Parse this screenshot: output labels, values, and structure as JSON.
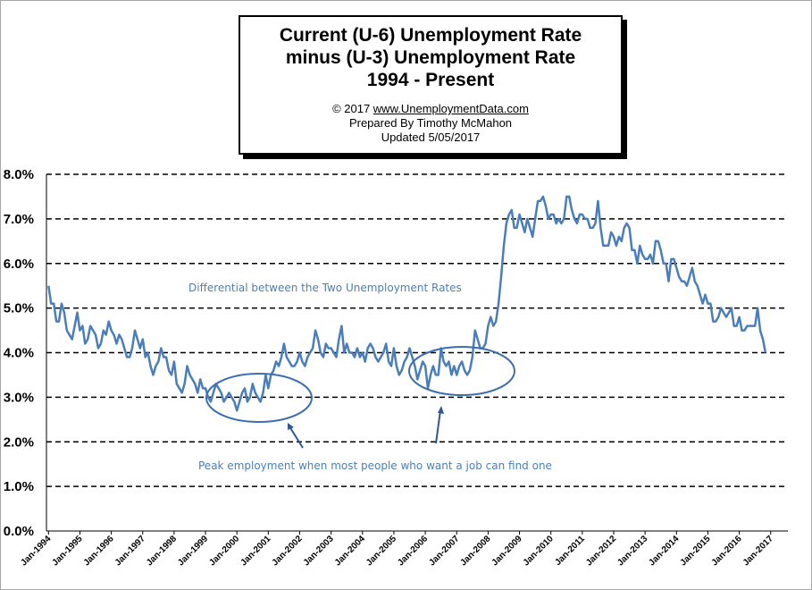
{
  "title": {
    "line1": "Current (U-6) Unemployment  Rate",
    "line2": "minus (U-3) Unemployment Rate",
    "line3": "1994 - Present"
  },
  "credits": {
    "copyright": "© 2017  ",
    "url": "www.UnemploymentData.com",
    "prepared": "Prepared  By Timothy McMahon",
    "updated": "Updated  5/05/2017"
  },
  "annotations": {
    "differential": "Differential between the Two Unemployment Rates",
    "peak": "Peak employment when most people who want a job can find one"
  },
  "colors": {
    "series": "#4a7ebb",
    "annotation": "#4c7fb8",
    "grid": "#000000"
  },
  "chart_data": {
    "type": "line",
    "ylim": [
      0,
      8
    ],
    "yticks": [
      "0.0%",
      "1.0%",
      "2.0%",
      "3.0%",
      "4.0%",
      "5.0%",
      "6.0%",
      "7.0%",
      "8.0%"
    ],
    "xticks": [
      "Jan-1994",
      "Jan-1995",
      "Jan-1996",
      "Jan-1997",
      "Jan-1998",
      "Jan-1999",
      "Jan-2000",
      "Jan-2001",
      "Jan-2002",
      "Jan-2003",
      "Jan-2004",
      "Jan-2005",
      "Jan-2006",
      "Jan-2007",
      "Jan-2008",
      "Jan-2009",
      "Jan-2010",
      "Jan-2011",
      "Jan-2012",
      "Jan-2013",
      "Jan-2014",
      "Jan-2015",
      "Jan-2016",
      "Jan-2017"
    ],
    "grid": "horizontal dashed",
    "start": "Jan-1994",
    "end": "Apr-2017",
    "values": [
      5.5,
      5.1,
      5.1,
      4.7,
      4.7,
      5.1,
      4.9,
      4.5,
      4.4,
      4.3,
      4.6,
      4.9,
      4.5,
      4.6,
      4.2,
      4.3,
      4.6,
      4.5,
      4.4,
      4.1,
      4.2,
      4.5,
      4.4,
      4.7,
      4.5,
      4.4,
      4.2,
      4.4,
      4.3,
      4.1,
      3.9,
      3.9,
      4.1,
      4.5,
      4.3,
      4.1,
      4.3,
      3.9,
      4.0,
      3.7,
      3.5,
      3.7,
      3.8,
      4.1,
      3.9,
      3.9,
      3.6,
      3.5,
      3.8,
      3.3,
      3.2,
      3.1,
      3.3,
      3.7,
      3.5,
      3.4,
      3.3,
      3.1,
      3.4,
      3.2,
      3.2,
      3.0,
      2.9,
      3.1,
      3.3,
      3.2,
      3.1,
      2.9,
      3.0,
      3.1,
      3.0,
      2.9,
      2.7,
      2.9,
      3.1,
      3.2,
      2.9,
      3.0,
      3.3,
      3.1,
      3.0,
      2.9,
      3.1,
      3.5,
      3.2,
      3.5,
      3.6,
      3.8,
      3.7,
      3.9,
      4.2,
      3.9,
      3.8,
      3.7,
      3.7,
      3.8,
      4.0,
      3.8,
      3.7,
      3.9,
      4.0,
      4.1,
      4.5,
      4.3,
      4.0,
      3.9,
      4.2,
      4.1,
      4.1,
      4.0,
      3.9,
      4.3,
      4.6,
      4.0,
      4.2,
      4.0,
      4.0,
      3.9,
      4.1,
      3.9,
      4.0,
      3.8,
      4.1,
      4.2,
      4.1,
      3.9,
      3.8,
      3.9,
      4.0,
      4.2,
      3.8,
      3.7,
      4.1,
      3.7,
      3.5,
      3.6,
      3.8,
      3.9,
      4.1,
      3.9,
      3.7,
      3.4,
      3.6,
      3.8,
      3.7,
      3.2,
      3.5,
      3.7,
      3.5,
      3.5,
      4.1,
      3.8,
      3.7,
      3.8,
      3.5,
      3.7,
      3.5,
      3.7,
      3.8,
      3.6,
      3.5,
      3.6,
      3.9,
      4.5,
      4.3,
      4.1,
      4.1,
      4.2,
      4.6,
      4.8,
      4.6,
      4.7,
      5.1,
      5.7,
      6.4,
      6.9,
      7.1,
      7.2,
      6.8,
      6.8,
      7.1,
      6.9,
      6.7,
      7.0,
      6.8,
      6.6,
      7.0,
      7.4,
      7.4,
      7.5,
      7.3,
      7.0,
      7.1,
      7.1,
      6.9,
      7.0,
      6.9,
      7.0,
      7.5,
      7.5,
      7.2,
      7.0,
      6.9,
      7.1,
      7.1,
      7.0,
      7.0,
      6.8,
      6.8,
      6.9,
      7.4,
      6.8,
      6.4,
      6.4,
      6.4,
      6.7,
      6.6,
      6.4,
      6.6,
      6.5,
      6.8,
      6.9,
      6.8,
      6.3,
      6.3,
      6.0,
      6.4,
      6.2,
      6.1,
      6.1,
      6.2,
      6.0,
      6.5,
      6.5,
      6.3,
      6.0,
      6.0,
      5.6,
      6.1,
      6.1,
      5.9,
      5.7,
      5.6,
      5.6,
      5.5,
      5.7,
      5.9,
      5.6,
      5.5,
      5.3,
      5.1,
      5.3,
      5.1,
      5.1,
      4.7,
      4.7,
      4.8,
      5.0,
      4.9,
      4.8,
      4.9,
      5.0,
      4.6,
      4.6,
      4.8,
      4.5,
      4.5,
      4.6,
      4.6,
      4.6,
      4.6,
      5.0,
      4.5,
      4.3,
      4.0
    ]
  }
}
